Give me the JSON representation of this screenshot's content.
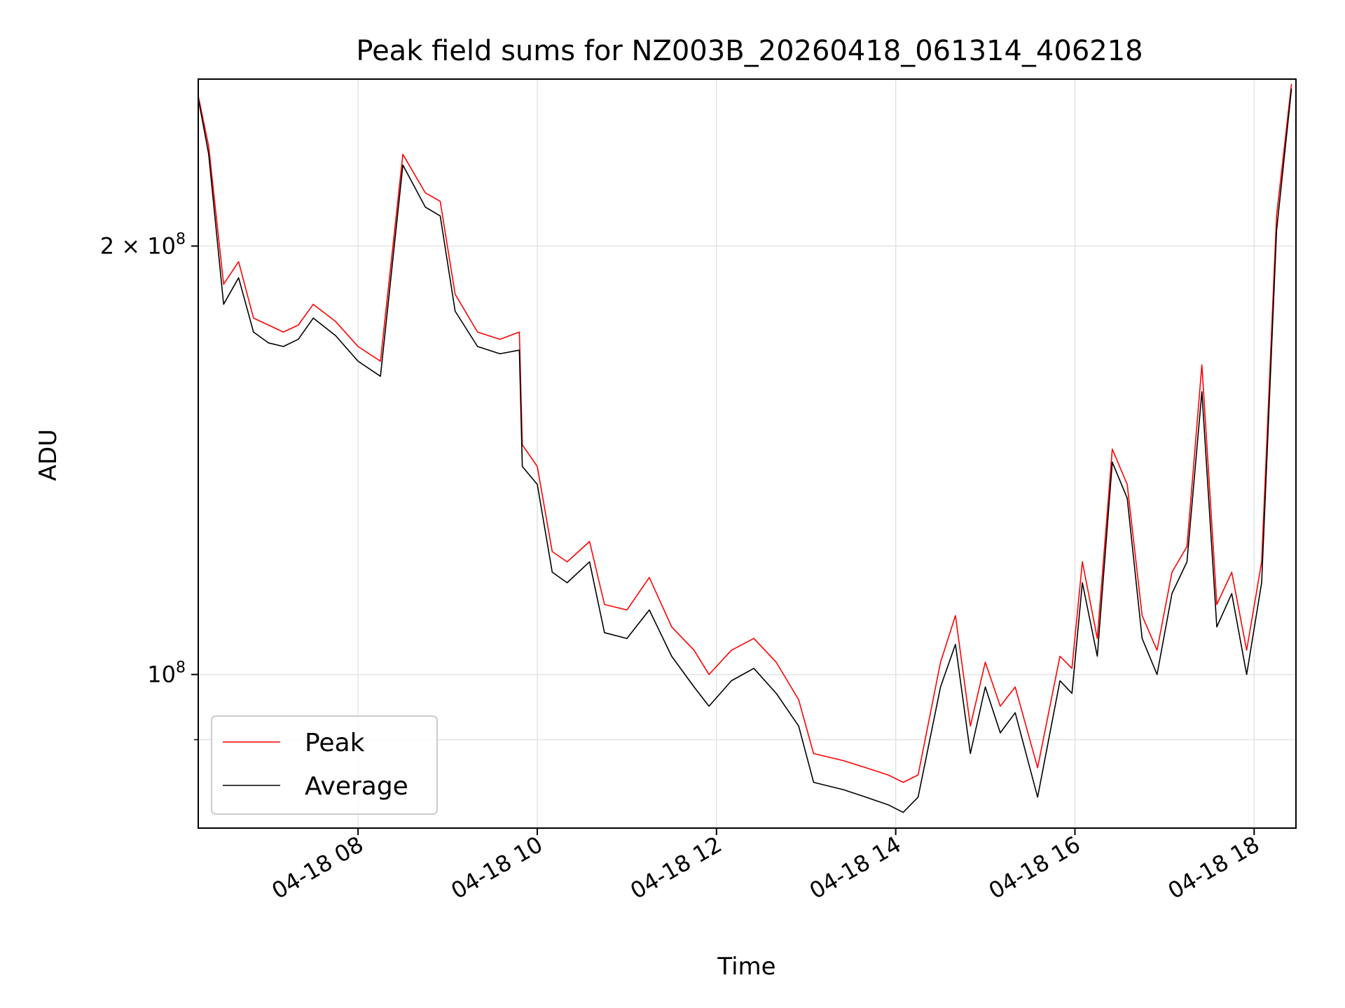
{
  "chart_data": {
    "type": "line",
    "title": "Peak field sums for NZ003B_20260418_061314_406218",
    "xlabel": "Time",
    "ylabel": "ADU",
    "y_scale": "log",
    "grid": true,
    "legend_placement": "lower-left",
    "xlim": [
      "2026-04-18 06:13",
      "2026-04-18 18:28"
    ],
    "ylim": [
      78000000,
      262000000
    ],
    "x_ticks": [
      {
        "x": "2026-04-18 08:00",
        "label": "04-18 08"
      },
      {
        "x": "2026-04-18 10:00",
        "label": "04-18 10"
      },
      {
        "x": "2026-04-18 12:00",
        "label": "04-18 12"
      },
      {
        "x": "2026-04-18 14:00",
        "label": "04-18 14"
      },
      {
        "x": "2026-04-18 16:00",
        "label": "04-18 16"
      },
      {
        "x": "2026-04-18 18:00",
        "label": "04-18 18"
      }
    ],
    "y_ticks": [
      {
        "value": 100000000,
        "base": "10",
        "exp": "8"
      },
      {
        "value": 200000000,
        "base": "2 × 10",
        "exp": "8"
      }
    ],
    "y_minor_ticks": [
      90000000
    ],
    "series": [
      {
        "name": "Peak",
        "color": "#ff0000",
        "x": [
          "2026-04-18 06:13",
          "2026-04-18 06:20",
          "2026-04-18 06:30",
          "2026-04-18 06:40",
          "2026-04-18 06:50",
          "2026-04-18 07:00",
          "2026-04-18 07:10",
          "2026-04-18 07:20",
          "2026-04-18 07:30",
          "2026-04-18 07:45",
          "2026-04-18 08:00",
          "2026-04-18 08:15",
          "2026-04-18 08:30",
          "2026-04-18 08:45",
          "2026-04-18 08:55",
          "2026-04-18 09:05",
          "2026-04-18 09:20",
          "2026-04-18 09:35",
          "2026-04-18 09:48",
          "2026-04-18 09:50",
          "2026-04-18 10:00",
          "2026-04-18 10:10",
          "2026-04-18 10:20",
          "2026-04-18 10:35",
          "2026-04-18 10:45",
          "2026-04-18 11:00",
          "2026-04-18 11:15",
          "2026-04-18 11:30",
          "2026-04-18 11:45",
          "2026-04-18 11:55",
          "2026-04-18 12:10",
          "2026-04-18 12:25",
          "2026-04-18 12:40",
          "2026-04-18 12:55",
          "2026-04-18 13:05",
          "2026-04-18 13:25",
          "2026-04-18 13:40",
          "2026-04-18 13:55",
          "2026-04-18 14:05",
          "2026-04-18 14:15",
          "2026-04-18 14:30",
          "2026-04-18 14:40",
          "2026-04-18 14:50",
          "2026-04-18 15:00",
          "2026-04-18 15:10",
          "2026-04-18 15:20",
          "2026-04-18 15:35",
          "2026-04-18 15:50",
          "2026-04-18 15:58",
          "2026-04-18 16:05",
          "2026-04-18 16:15",
          "2026-04-18 16:25",
          "2026-04-18 16:35",
          "2026-04-18 16:45",
          "2026-04-18 16:55",
          "2026-04-18 17:05",
          "2026-04-18 17:15",
          "2026-04-18 17:25",
          "2026-04-18 17:35",
          "2026-04-18 17:45",
          "2026-04-18 17:55",
          "2026-04-18 18:05",
          "2026-04-18 18:15",
          "2026-04-18 18:25"
        ],
        "y": [
          255000000,
          235000000,
          188000000,
          195000000,
          178000000,
          176000000,
          174000000,
          176000000,
          182000000,
          177000000,
          170000000,
          166000000,
          232000000,
          218000000,
          215000000,
          185000000,
          174000000,
          172000000,
          174000000,
          145000000,
          140000000,
          122000000,
          120000000,
          124000000,
          112000000,
          111000000,
          117000000,
          108000000,
          104000000,
          100000000,
          104000000,
          106000000,
          102000000,
          96000000,
          88000000,
          87000000,
          86000000,
          85000000,
          84000000,
          85000000,
          102000000,
          110000000,
          92000000,
          102000000,
          95000000,
          98000000,
          86000000,
          103000000,
          101000000,
          120000000,
          106000000,
          144000000,
          136000000,
          110000000,
          104000000,
          118000000,
          123000000,
          165000000,
          112000000,
          118000000,
          104000000,
          120000000,
          210000000,
          260000000
        ]
      },
      {
        "name": "Average",
        "color": "#000000",
        "x": [
          "2026-04-18 06:13",
          "2026-04-18 06:20",
          "2026-04-18 06:30",
          "2026-04-18 06:40",
          "2026-04-18 06:50",
          "2026-04-18 07:00",
          "2026-04-18 07:10",
          "2026-04-18 07:20",
          "2026-04-18 07:30",
          "2026-04-18 07:45",
          "2026-04-18 08:00",
          "2026-04-18 08:15",
          "2026-04-18 08:30",
          "2026-04-18 08:45",
          "2026-04-18 08:55",
          "2026-04-18 09:05",
          "2026-04-18 09:20",
          "2026-04-18 09:35",
          "2026-04-18 09:48",
          "2026-04-18 09:50",
          "2026-04-18 10:00",
          "2026-04-18 10:10",
          "2026-04-18 10:20",
          "2026-04-18 10:35",
          "2026-04-18 10:45",
          "2026-04-18 11:00",
          "2026-04-18 11:15",
          "2026-04-18 11:30",
          "2026-04-18 11:45",
          "2026-04-18 11:55",
          "2026-04-18 12:10",
          "2026-04-18 12:25",
          "2026-04-18 12:40",
          "2026-04-18 12:55",
          "2026-04-18 13:05",
          "2026-04-18 13:25",
          "2026-04-18 13:40",
          "2026-04-18 13:55",
          "2026-04-18 14:05",
          "2026-04-18 14:15",
          "2026-04-18 14:30",
          "2026-04-18 14:40",
          "2026-04-18 14:50",
          "2026-04-18 15:00",
          "2026-04-18 15:10",
          "2026-04-18 15:20",
          "2026-04-18 15:35",
          "2026-04-18 15:50",
          "2026-04-18 15:58",
          "2026-04-18 16:05",
          "2026-04-18 16:15",
          "2026-04-18 16:25",
          "2026-04-18 16:35",
          "2026-04-18 16:45",
          "2026-04-18 16:55",
          "2026-04-18 17:05",
          "2026-04-18 17:15",
          "2026-04-18 17:25",
          "2026-04-18 17:35",
          "2026-04-18 17:45",
          "2026-04-18 17:55",
          "2026-04-18 18:05",
          "2026-04-18 18:15",
          "2026-04-18 18:25"
        ],
        "y": [
          254000000,
          232000000,
          182000000,
          190000000,
          174000000,
          171000000,
          170000000,
          172000000,
          178000000,
          173000000,
          166000000,
          162000000,
          228000000,
          213000000,
          210000000,
          180000000,
          170000000,
          168000000,
          169000000,
          140000000,
          136000000,
          118000000,
          116000000,
          120000000,
          107000000,
          106000000,
          111000000,
          103000000,
          98000000,
          95000000,
          99000000,
          101000000,
          97000000,
          92000000,
          84000000,
          83000000,
          82000000,
          81000000,
          80000000,
          82000000,
          98000000,
          105000000,
          88000000,
          98000000,
          91000000,
          94000000,
          82000000,
          99000000,
          97000000,
          116000000,
          103000000,
          141000000,
          133000000,
          106000000,
          100000000,
          114000000,
          120000000,
          158000000,
          108000000,
          114000000,
          100000000,
          116000000,
          205000000,
          258000000
        ]
      }
    ]
  }
}
